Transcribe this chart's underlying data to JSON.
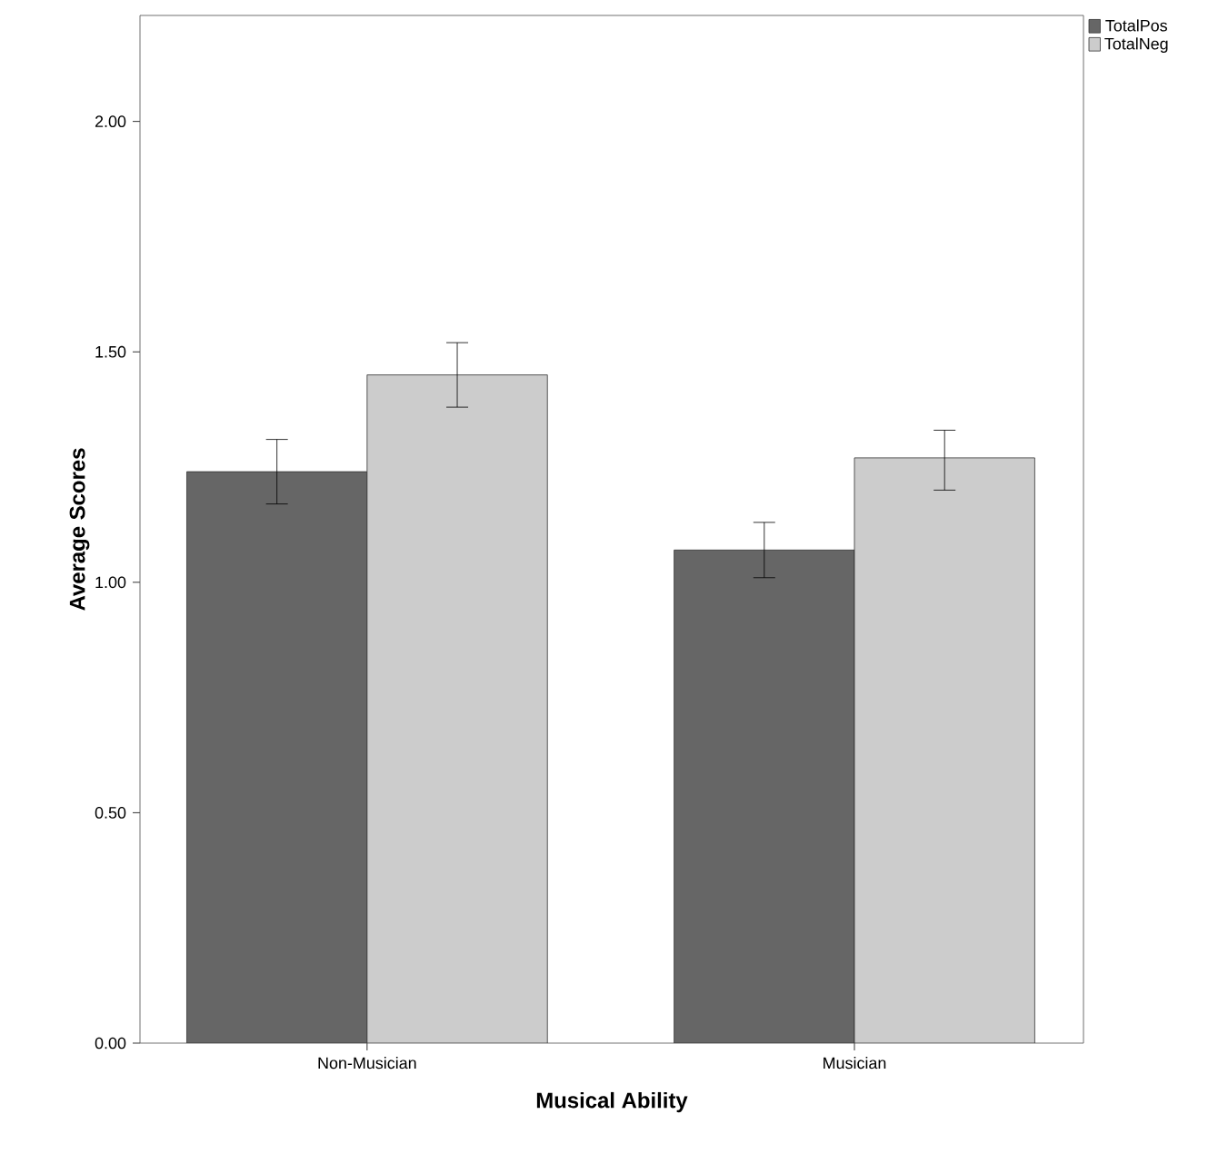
{
  "chart_data": {
    "type": "bar",
    "xlabel": "Musical Ability",
    "ylabel": "Average Scores",
    "categories": [
      "Non-Musician",
      "Musician"
    ],
    "series": [
      {
        "name": "TotalPos",
        "color": "#666666",
        "values": [
          1.24,
          1.07
        ],
        "errors": [
          [
            1.17,
            1.31
          ],
          [
            1.01,
            1.13
          ]
        ]
      },
      {
        "name": "TotalNeg",
        "color": "#cccccc",
        "values": [
          1.45,
          1.27
        ],
        "errors": [
          [
            1.38,
            1.52
          ],
          [
            1.2,
            1.33
          ]
        ]
      }
    ],
    "ylim": [
      0,
      2.23
    ],
    "yticks": [
      {
        "value": 0,
        "label": "0.00"
      },
      {
        "value": 0.5,
        "label": "0.50"
      },
      {
        "value": 1,
        "label": "1.00"
      },
      {
        "value": 1.5,
        "label": "1.50"
      },
      {
        "value": 2,
        "label": "2.00"
      }
    ],
    "legend": "top right"
  }
}
